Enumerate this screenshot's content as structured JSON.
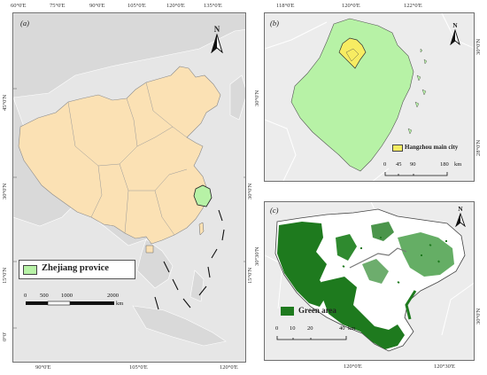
{
  "panel_a": {
    "label": "(a)",
    "top_ticks": [
      "60°0'E",
      "75°0'E",
      "90°0'E",
      "105°0'E",
      "120°0'E",
      "135°0'E"
    ],
    "bottom_ticks": [
      "90°0'E",
      "105°0'E",
      "120°0'E"
    ],
    "left_ticks": [
      "45°0'N",
      "30°0'N",
      "15°0'N",
      "0°0'"
    ],
    "right_ticks": [
      "30°0'N",
      "15°0'N"
    ],
    "north": "N",
    "legend_label": "Zhejiang provice",
    "scalebar": [
      "0",
      "500",
      "1000",
      "2000"
    ],
    "scalebar_unit": "km",
    "colors": {
      "china": "#fbe1b4",
      "zhejiang": "#b7f2a6",
      "taiwan": "#fbe1b4"
    }
  },
  "panel_b": {
    "label": "(b)",
    "top_ticks": [
      "118°0'E",
      "120°0'E",
      "122°0'E"
    ],
    "left_ticks": [
      "30°0'N"
    ],
    "right_ticks": [
      "30°0'N",
      "28°0'N"
    ],
    "north": "N",
    "legend_label": "Hangzhou main city",
    "scalebar": [
      "0",
      "45",
      "90",
      "180"
    ],
    "scalebar_unit": "km",
    "colors": {
      "province": "#b7f2a6",
      "main_city": "#f7ec62"
    }
  },
  "panel_c": {
    "label": "(c)",
    "bottom_ticks": [
      "120°0'E",
      "120°30'E"
    ],
    "left_ticks": [
      "30°30'N"
    ],
    "right_ticks": [
      "30°0'N"
    ],
    "north": "N",
    "legend_label": "Green area",
    "scalebar": [
      "0",
      "10",
      "20",
      "40"
    ],
    "scalebar_unit": "km",
    "colors": {
      "green_area": "#1e7a1e"
    }
  }
}
